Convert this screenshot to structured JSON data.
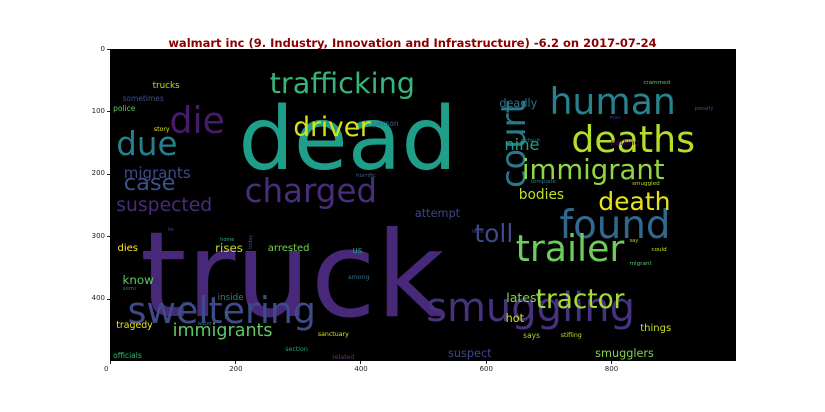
{
  "chart_data": {
    "type": "wordcloud",
    "title": "walmart inc (9. Industry, Innovation and Infrastructure) -6.2 on 2017-07-24",
    "title_color": "#8b0000",
    "background": "#000000",
    "xlim": [
      0,
      1000
    ],
    "ylim": [
      500,
      0
    ],
    "xticks": [
      0,
      200,
      400,
      600,
      800
    ],
    "yticks": [
      0,
      100,
      200,
      300,
      400
    ],
    "words": [
      {
        "text": "truck",
        "x": 48,
        "y": 445,
        "size": 190,
        "color": "#482878",
        "vertical": false
      },
      {
        "text": "dead",
        "x": 205,
        "y": 205,
        "size": 140,
        "color": "#1f9e89",
        "vertical": false
      },
      {
        "text": "smuggling",
        "x": 505,
        "y": 442,
        "size": 64,
        "color": "#46327e",
        "vertical": false
      },
      {
        "text": "sweltering",
        "x": 28,
        "y": 445,
        "size": 58,
        "color": "#3e4a89",
        "vertical": false
      },
      {
        "text": "found",
        "x": 718,
        "y": 310,
        "size": 62,
        "color": "#31688e",
        "vertical": false
      },
      {
        "text": "human",
        "x": 702,
        "y": 110,
        "size": 58,
        "color": "#26828e",
        "vertical": false
      },
      {
        "text": "trailer",
        "x": 648,
        "y": 345,
        "size": 58,
        "color": "#6ccd5a",
        "vertical": false
      },
      {
        "text": "deaths",
        "x": 737,
        "y": 170,
        "size": 58,
        "color": "#b5de2b",
        "vertical": false
      },
      {
        "text": "die",
        "x": 95,
        "y": 140,
        "size": 58,
        "color": "#481a6c",
        "vertical": false
      },
      {
        "text": "charged",
        "x": 215,
        "y": 250,
        "size": 52,
        "color": "#472d7b",
        "vertical": false
      },
      {
        "text": "trafficking",
        "x": 255,
        "y": 75,
        "size": 46,
        "color": "#35b779",
        "vertical": false
      },
      {
        "text": "court",
        "x": 618,
        "y": 222,
        "size": 54,
        "color": "#2a788e",
        "vertical": true
      },
      {
        "text": "due",
        "x": 10,
        "y": 175,
        "size": 52,
        "color": "#277f8e",
        "vertical": false
      },
      {
        "text": "immigrant",
        "x": 658,
        "y": 213,
        "size": 44,
        "color": "#90d743",
        "vertical": false
      },
      {
        "text": "tractor",
        "x": 680,
        "y": 420,
        "size": 42,
        "color": "#a5db36",
        "vertical": false
      },
      {
        "text": "driver",
        "x": 293,
        "y": 145,
        "size": 42,
        "color": "#d8e219",
        "vertical": false
      },
      {
        "text": "death",
        "x": 780,
        "y": 262,
        "size": 40,
        "color": "#e7e419",
        "vertical": false
      },
      {
        "text": "case",
        "x": 22,
        "y": 230,
        "size": 36,
        "color": "#3b528b",
        "vertical": false
      },
      {
        "text": "toll",
        "x": 582,
        "y": 313,
        "size": 40,
        "color": "#3e4989",
        "vertical": false
      },
      {
        "text": "suspected",
        "x": 10,
        "y": 265,
        "size": 30,
        "color": "#472c7a",
        "vertical": false
      },
      {
        "text": "immigrants",
        "x": 100,
        "y": 465,
        "size": 28,
        "color": "#5ec962",
        "vertical": false
      },
      {
        "text": "migrants",
        "x": 22,
        "y": 210,
        "size": 24,
        "color": "#3e4a89",
        "vertical": false
      },
      {
        "text": "nine",
        "x": 630,
        "y": 165,
        "size": 26,
        "color": "#1fa088",
        "vertical": false
      },
      {
        "text": "bodies",
        "x": 653,
        "y": 245,
        "size": 22,
        "color": "#bddf26",
        "vertical": false
      },
      {
        "text": "latest",
        "x": 633,
        "y": 408,
        "size": 20,
        "color": "#86d549",
        "vertical": false
      },
      {
        "text": "attempt",
        "x": 487,
        "y": 272,
        "size": 18,
        "color": "#414487",
        "vertical": false
      },
      {
        "text": "know",
        "x": 20,
        "y": 380,
        "size": 19,
        "color": "#5ec962",
        "vertical": false
      },
      {
        "text": "rises",
        "x": 168,
        "y": 328,
        "size": 19,
        "color": "#c2df23",
        "vertical": false
      },
      {
        "text": "dies",
        "x": 12,
        "y": 328,
        "size": 16,
        "color": "#fde725",
        "vertical": false
      },
      {
        "text": "arrested",
        "x": 252,
        "y": 328,
        "size": 16,
        "color": "#77d153",
        "vertical": false
      },
      {
        "text": "deadly",
        "x": 622,
        "y": 95,
        "size": 18,
        "color": "#2b748e",
        "vertical": false
      },
      {
        "text": "suspect",
        "x": 540,
        "y": 495,
        "size": 18,
        "color": "#3f4788",
        "vertical": false
      },
      {
        "text": "smugglers",
        "x": 775,
        "y": 495,
        "size": 18,
        "color": "#84d44b",
        "vertical": false
      },
      {
        "text": "hot",
        "x": 632,
        "y": 440,
        "size": 18,
        "color": "#d2e21b",
        "vertical": false
      },
      {
        "text": "things",
        "x": 847,
        "y": 455,
        "size": 16,
        "color": "#d0e11c",
        "vertical": false
      },
      {
        "text": "tragedy",
        "x": 10,
        "y": 450,
        "size": 15,
        "color": "#e7e419",
        "vertical": false
      },
      {
        "text": "inside",
        "x": 172,
        "y": 405,
        "size": 14,
        "color": "#25848e",
        "vertical": false
      },
      {
        "text": "trucks",
        "x": 68,
        "y": 65,
        "size": 14,
        "color": "#bddf26",
        "vertical": false
      },
      {
        "text": "us",
        "x": 387,
        "y": 330,
        "size": 14,
        "color": "#1f9a8a",
        "vertical": false
      },
      {
        "text": "sometimes",
        "x": 20,
        "y": 85,
        "size": 12,
        "color": "#3b518b",
        "vertical": false
      },
      {
        "text": "police",
        "x": 5,
        "y": 100,
        "size": 12,
        "color": "#5ec962",
        "vertical": false
      },
      {
        "text": "says",
        "x": 660,
        "y": 465,
        "size": 12,
        "color": "#a2da37",
        "vertical": false
      },
      {
        "text": "person",
        "x": 420,
        "y": 125,
        "size": 12,
        "color": "#31688e",
        "vertical": false
      },
      {
        "text": "parking",
        "x": 800,
        "y": 155,
        "size": 12,
        "color": "#44015a",
        "vertical": false
      },
      {
        "text": "sanctuary",
        "x": 332,
        "y": 462,
        "size": 10,
        "color": "#d8e219",
        "vertical": false
      },
      {
        "text": "stifling",
        "x": 720,
        "y": 465,
        "size": 10,
        "color": "#cde11d",
        "vertical": false
      },
      {
        "text": "officials",
        "x": 5,
        "y": 497,
        "size": 12,
        "color": "#35b779",
        "vertical": false
      },
      {
        "text": "section",
        "x": 280,
        "y": 487,
        "size": 10,
        "color": "#21a585",
        "vertical": false
      },
      {
        "text": "related",
        "x": 355,
        "y": 500,
        "size": 10,
        "color": "#6f2c8a",
        "vertical": false
      },
      {
        "text": "among",
        "x": 380,
        "y": 372,
        "size": 10,
        "color": "#2c718e",
        "vertical": false
      },
      {
        "text": "story",
        "x": 70,
        "y": 135,
        "size": 10,
        "color": "#e7e419",
        "vertical": false
      },
      {
        "text": "horrific",
        "x": 393,
        "y": 208,
        "size": 9,
        "color": "#34618d",
        "vertical": false
      },
      {
        "text": "template",
        "x": 672,
        "y": 218,
        "size": 9,
        "color": "#2a788e",
        "vertical": false
      },
      {
        "text": "default",
        "x": 656,
        "y": 152,
        "size": 9,
        "color": "#2c718e",
        "vertical": false
      },
      {
        "text": "smuggled",
        "x": 834,
        "y": 222,
        "size": 9,
        "color": "#b8de29",
        "vertical": false
      },
      {
        "text": "crammed",
        "x": 852,
        "y": 60,
        "size": 9,
        "color": "#5cc863",
        "vertical": false
      },
      {
        "text": "penalty",
        "x": 934,
        "y": 100,
        "size": 8,
        "color": "#3c4f8a",
        "vertical": false
      },
      {
        "text": "man",
        "x": 798,
        "y": 115,
        "size": 8,
        "color": "#46307e",
        "vertical": false
      },
      {
        "text": "least",
        "x": 578,
        "y": 297,
        "size": 8,
        "color": "#433e85",
        "vertical": false
      },
      {
        "text": "say",
        "x": 830,
        "y": 312,
        "size": 8,
        "color": "#b5de2b",
        "vertical": false
      },
      {
        "text": "could",
        "x": 865,
        "y": 327,
        "size": 9,
        "color": "#d5e21a",
        "vertical": false
      },
      {
        "text": "migrant",
        "x": 830,
        "y": 350,
        "size": 9,
        "color": "#56c667",
        "vertical": false
      },
      {
        "text": "semi",
        "x": 20,
        "y": 390,
        "size": 9,
        "color": "#2a788e",
        "vertical": false
      },
      {
        "text": "site",
        "x": 115,
        "y": 413,
        "size": 9,
        "color": "#31688e",
        "vertical": false
      },
      {
        "text": "water",
        "x": 140,
        "y": 445,
        "size": 8,
        "color": "#2c728e",
        "vertical": false
      },
      {
        "text": "charges",
        "x": 115,
        "y": 508,
        "size": 8,
        "color": "#433d84",
        "vertical": false
      },
      {
        "text": "home",
        "x": 176,
        "y": 310,
        "size": 8,
        "color": "#31b57b",
        "vertical": false
      },
      {
        "text": "today",
        "x": 222,
        "y": 320,
        "size": 8,
        "color": "#3e4989",
        "vertical": true
      },
      {
        "text": "car",
        "x": 183,
        "y": 433,
        "size": 8,
        "color": "#25838e",
        "vertical": true
      },
      {
        "text": "tie",
        "x": 92,
        "y": 295,
        "size": 8,
        "color": "#443983",
        "vertical": false
      }
    ]
  }
}
